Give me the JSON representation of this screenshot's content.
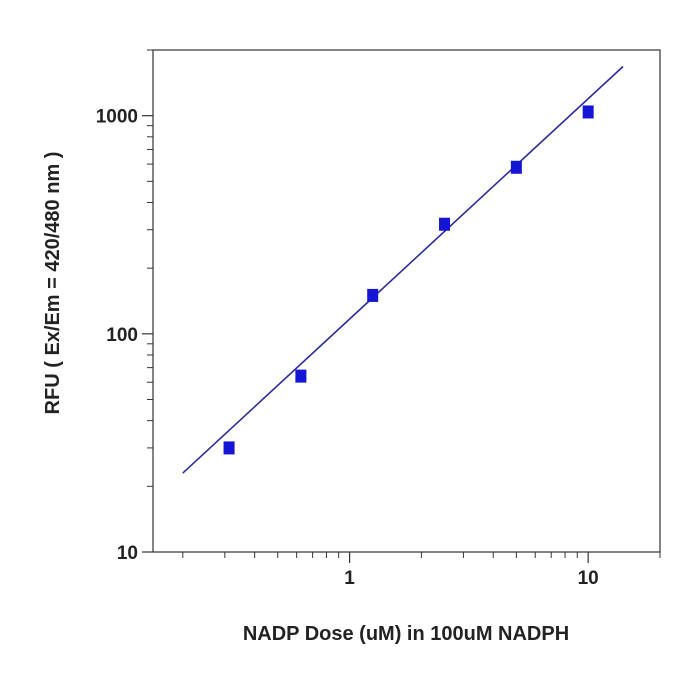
{
  "chart_data": {
    "type": "scatter",
    "xlabel": "NADP Dose (uM) in 100uM NADPH",
    "ylabel": "RFU ( Ex/Em = 420/480 nm )",
    "xscale": "log",
    "yscale": "log",
    "xlim": [
      0.15,
      20
    ],
    "ylim": [
      10,
      2000
    ],
    "x_ticks": [
      {
        "value": 1,
        "label": "1"
      },
      {
        "value": 10,
        "label": "10"
      }
    ],
    "y_ticks": [
      {
        "value": 10,
        "label": "10"
      },
      {
        "value": 100,
        "label": "100"
      },
      {
        "value": 1000,
        "label": "1000"
      }
    ],
    "grid": false,
    "legend": "none",
    "series": [
      {
        "marker": "square",
        "color": "#1515d6",
        "x": [
          0.3125,
          0.625,
          1.25,
          2.5,
          5,
          10
        ],
        "y": [
          30,
          64,
          150,
          318,
          580,
          1040
        ]
      }
    ],
    "fit_line": {
      "color": "#2a2a9a",
      "x": [
        0.2,
        14
      ],
      "y": [
        23,
        1680
      ]
    }
  }
}
